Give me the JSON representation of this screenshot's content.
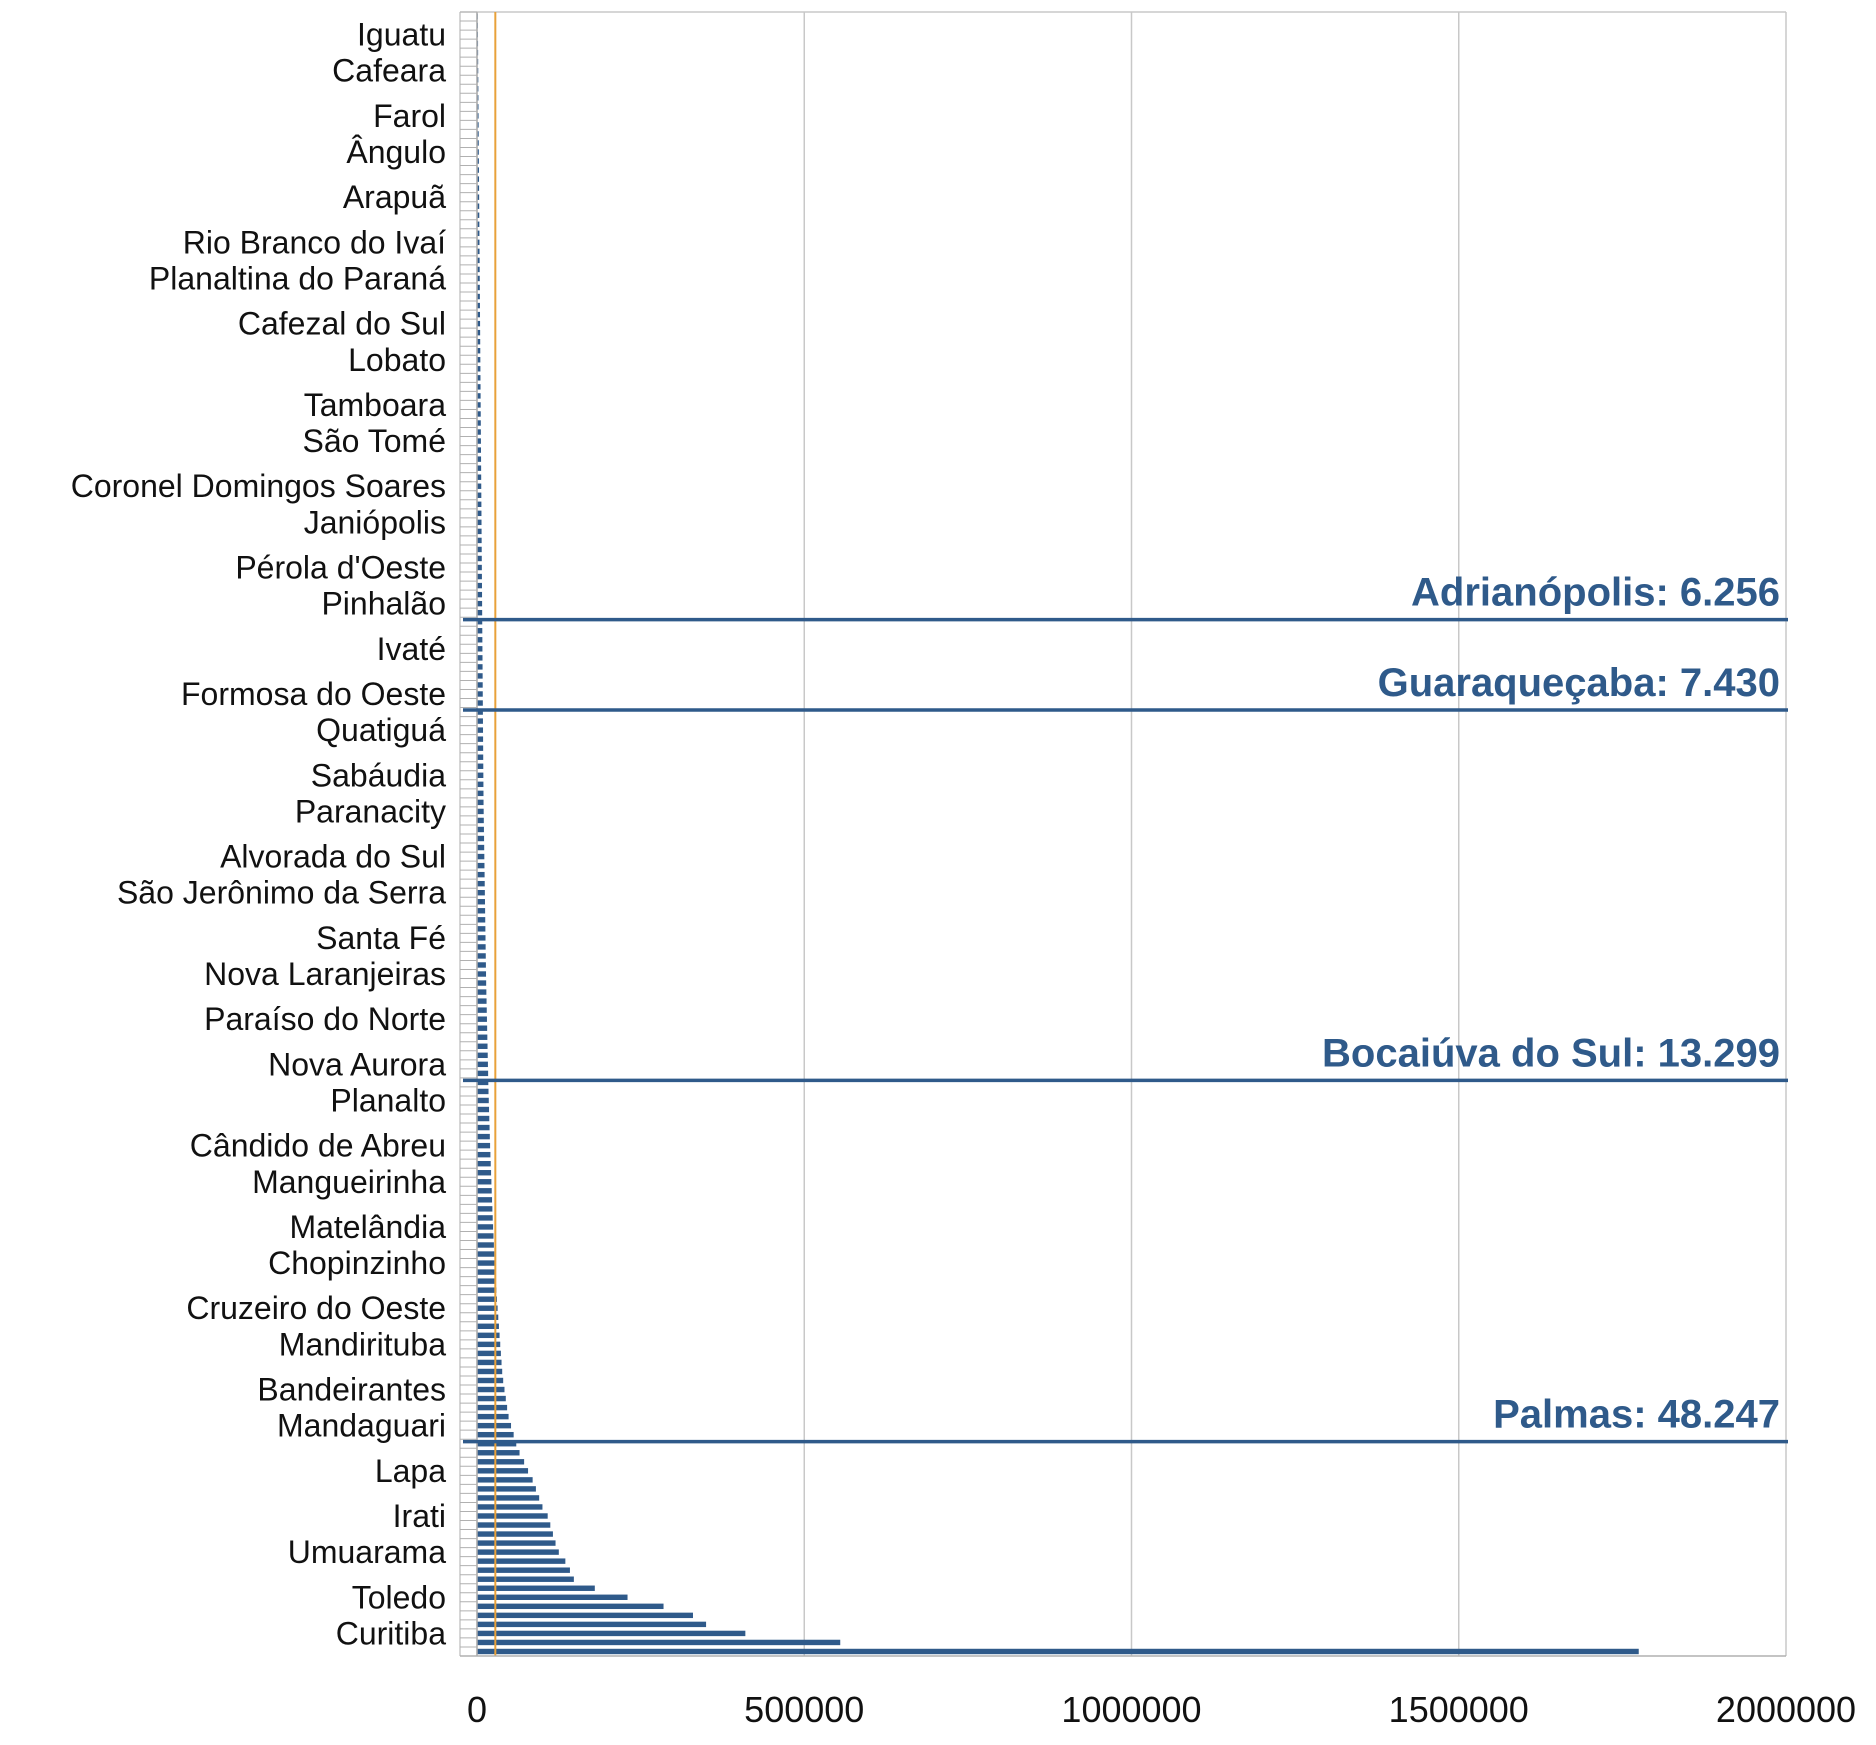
{
  "chart_data": {
    "type": "bar",
    "orientation": "horizontal",
    "title": "",
    "xlabel": "",
    "ylabel": "",
    "xlim": [
      0,
      2000000
    ],
    "x_ticks": [
      "0",
      "500000",
      "1000000",
      "1500000",
      "2000000"
    ],
    "grid": "vertical",
    "legend": "none",
    "bar_color": "#2f5a8a",
    "reference_line": {
      "value": 28000,
      "color": "#e8a13a"
    },
    "category_labels": [
      "Iguatu",
      "Cafeara",
      "Farol",
      "Ângulo",
      "Arapuã",
      "Rio Branco do Ivaí",
      "Planaltina do Paraná",
      "Cafezal do Sul",
      "Lobato",
      "Tamboara",
      "São Tomé",
      "Coronel Domingos Soares",
      "Janiópolis",
      "Pérola d'Oeste",
      "Pinhalão",
      "Ivaté",
      "Formosa do Oeste",
      "Quatiguá",
      "Sabáudia",
      "Paranacity",
      "Alvorada do Sul",
      "São Jerônimo da Serra",
      "Santa Fé",
      "Nova Laranjeiras",
      "Paraíso do Norte",
      "Nova Aurora",
      "Planalto",
      "Cândido de Abreu",
      "Mangueirinha",
      "Matelândia",
      "Chopinzinho",
      "Cruzeiro do Oeste",
      "Mandirituba",
      "Bandeirantes",
      "Mandaguari",
      "Lapa",
      "Irati",
      "Umuarama",
      "Toledo",
      "Curitiba"
    ],
    "annotations": [
      {
        "label": "Adrianópolis: 6.256",
        "category": "Pinhalão",
        "color": "#2f5a8a"
      },
      {
        "label": "Guaraqueçaba: 7.430",
        "category": "Formosa do Oeste",
        "color": "#2f5a8a"
      },
      {
        "label": "Bocaiúva do Sul: 13.299",
        "category": "Nova Aurora",
        "color": "#2f5a8a"
      },
      {
        "label": "Palmas: 48.247",
        "category": "Mandaguari",
        "color": "#2f5a8a"
      }
    ],
    "series": [
      {
        "values": [
          1200,
          1400,
          1500,
          1600,
          1700,
          1800,
          1900,
          2000,
          2100,
          2200,
          2300,
          2400,
          2500,
          2600,
          2700,
          2800,
          2900,
          3000,
          3100,
          3200,
          3300,
          3400,
          3500,
          3600,
          3700,
          3800,
          3900,
          4000,
          4100,
          4200,
          4300,
          4400,
          4500,
          4600,
          4700,
          4800,
          4900,
          5000,
          5100,
          5200,
          5300,
          5400,
          5500,
          5600,
          5700,
          5800,
          5900,
          6000,
          6100,
          6200,
          6300,
          6400,
          6500,
          6600,
          6700,
          6800,
          6900,
          7000,
          7100,
          7200,
          7300,
          7400,
          7500,
          7600,
          7700,
          7800,
          7900,
          8000,
          8100,
          8200,
          8300,
          8400,
          8500,
          8600,
          8700,
          8800,
          8900,
          9000,
          9100,
          9200,
          9300,
          9400,
          9500,
          9600,
          9700,
          9800,
          9900,
          10000,
          10200,
          10400,
          10600,
          10800,
          11000,
          11200,
          11400,
          11600,
          11800,
          12000,
          12200,
          12400,
          12600,
          12800,
          13000,
          13200,
          13400,
          13600,
          13800,
          14000,
          14300,
          14600,
          14900,
          15200,
          15500,
          15800,
          16100,
          16400,
          16700,
          17000,
          17300,
          17600,
          18000,
          18400,
          18800,
          19200,
          19600,
          20000,
          20500,
          21000,
          21500,
          22000,
          22500,
          23000,
          23500,
          24000,
          24600,
          25200,
          25800,
          26500,
          27200,
          28000,
          28800,
          29600,
          30500,
          31500,
          32500,
          33500,
          34500,
          35500,
          36500,
          37500,
          38500,
          40000,
          42000,
          44000,
          46000,
          48247,
          52000,
          56000,
          60000,
          65000,
          72000,
          78000,
          85000,
          90000,
          95000,
          100000,
          108000,
          112000,
          116000,
          120000,
          125000,
          135000,
          142000,
          148000,
          180000,
          230000,
          285000,
          330000,
          350000,
          410000,
          555000,
          1775000
        ]
      }
    ]
  }
}
